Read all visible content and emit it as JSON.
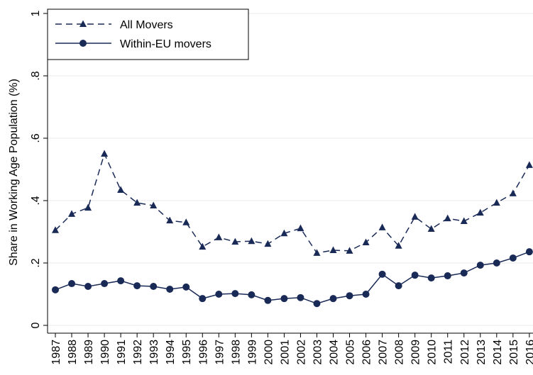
{
  "chart_data": {
    "type": "line",
    "y_label": "Share in Working Age Population (%)",
    "categories": [
      "1987",
      "1988",
      "1989",
      "1990",
      "1991",
      "1992",
      "1993",
      "1994",
      "1995",
      "1996",
      "1997",
      "1998",
      "1999",
      "2000",
      "2001",
      "2002",
      "2003",
      "2004",
      "2005",
      "2006",
      "2007",
      "2008",
      "2009",
      "2010",
      "2011",
      "2012",
      "2013",
      "2014",
      "2015",
      "2016"
    ],
    "series": [
      {
        "name": "All Movers",
        "color": "#1a2a57",
        "dash": true,
        "marker": "triangle",
        "values": [
          0.305,
          0.357,
          0.377,
          0.55,
          0.434,
          0.393,
          0.384,
          0.336,
          0.33,
          0.252,
          0.282,
          0.268,
          0.27,
          0.261,
          0.295,
          0.311,
          0.232,
          0.241,
          0.239,
          0.266,
          0.314,
          0.255,
          0.348,
          0.309,
          0.343,
          0.334,
          0.361,
          0.393,
          0.423,
          0.514
        ]
      },
      {
        "name": "Within-EU movers",
        "color": "#1a2a57",
        "dash": false,
        "marker": "circle",
        "values": [
          0.114,
          0.134,
          0.125,
          0.134,
          0.143,
          0.127,
          0.125,
          0.116,
          0.123,
          0.086,
          0.1,
          0.102,
          0.098,
          0.08,
          0.086,
          0.089,
          0.07,
          0.086,
          0.095,
          0.1,
          0.164,
          0.127,
          0.161,
          0.152,
          0.159,
          0.168,
          0.193,
          0.2,
          0.216,
          0.236
        ]
      }
    ],
    "ylim": [
      0,
      1
    ],
    "yticks": [
      0,
      {
        "value": 0.2,
        "label": ".2"
      },
      {
        "value": 0.4,
        "label": ".4"
      },
      {
        "value": 0.6,
        "label": ".6"
      },
      {
        "value": 0.8,
        "label": ".8"
      },
      1
    ],
    "grid": true,
    "legend": "top-left"
  }
}
